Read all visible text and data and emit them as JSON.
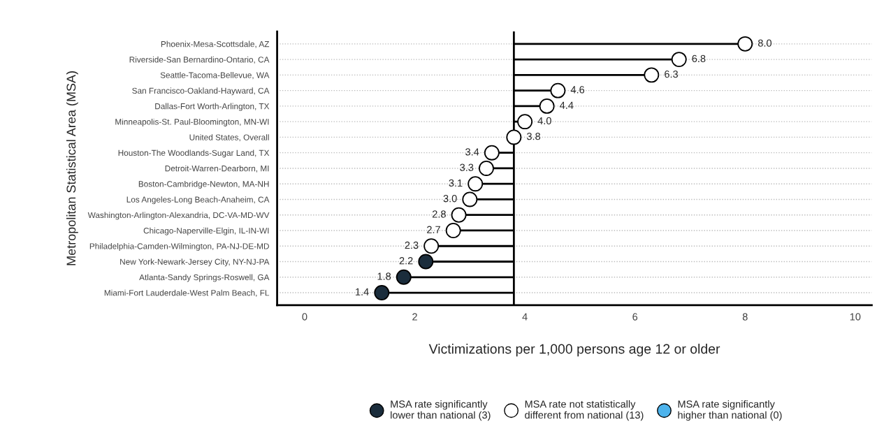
{
  "chart_data": {
    "type": "lollipop",
    "orientation": "horizontal",
    "ylabel": "Metropolitan Statistical Area (MSA)",
    "xlabel": "Victimizations per 1,000 persons age 12 or older",
    "categories": [
      "Phoenix-Mesa-Scottsdale, AZ",
      "Riverside-San Bernardino-Ontario, CA",
      "Seattle-Tacoma-Bellevue, WA",
      "San Francisco-Oakland-Hayward, CA",
      "Dallas-Fort Worth-Arlington, TX",
      "Minneapolis-St. Paul-Bloomington, MN-WI",
      "United States, Overall",
      "Houston-The Woodlands-Sugar Land, TX",
      "Detroit-Warren-Dearborn, MI",
      "Boston-Cambridge-Newton, MA-NH",
      "Los Angeles-Long Beach-Anaheim, CA",
      "Washington-Arlington-Alexandria, DC-VA-MD-WV",
      "Chicago-Naperville-Elgin, IL-IN-WI",
      "Philadelphia-Camden-Wilmington, PA-NJ-DE-MD",
      "New York-Newark-Jersey City, NY-NJ-PA",
      "Atlanta-Sandy Springs-Roswell, GA",
      "Miami-Fort Lauderdale-West Palm Beach, FL"
    ],
    "series": [
      {
        "name": "MSA rate significantly\nlower than national (3)",
        "color": "#1b2d3c",
        "values": [
          null,
          null,
          null,
          null,
          null,
          null,
          null,
          null,
          null,
          null,
          null,
          null,
          null,
          null,
          2.2,
          1.8,
          1.4
        ],
        "value_labels": [
          null,
          null,
          null,
          null,
          null,
          null,
          null,
          null,
          null,
          null,
          null,
          null,
          null,
          null,
          "2.2",
          "1.8",
          "1.4"
        ]
      },
      {
        "name": "MSA rate not statistically\ndifferent from national (13)",
        "color": "#ffffff",
        "values": [
          8.0,
          6.8,
          6.3,
          4.6,
          4.4,
          4.0,
          3.8,
          3.4,
          3.3,
          3.1,
          3.0,
          2.8,
          2.7,
          2.3,
          null,
          null,
          null
        ],
        "value_labels": [
          "8.0",
          "6.8",
          "6.3",
          "4.6",
          "4.4",
          "4.0",
          "3.8",
          "3.4",
          "3.3",
          "3.1",
          "3.0",
          "2.8",
          "2.7",
          "2.3",
          null,
          null,
          null
        ]
      },
      {
        "name": "MSA rate significantly\nhigher than national (0)",
        "color": "#4db3ec",
        "values": [
          null,
          null,
          null,
          null,
          null,
          null,
          null,
          null,
          null,
          null,
          null,
          null,
          null,
          null,
          null,
          null,
          null
        ]
      }
    ],
    "ref_lines": [
      {
        "axis": "x",
        "value": 3.8,
        "color": "#000000",
        "line_style": "solid"
      }
    ],
    "xlim": [
      -0.5,
      10.3
    ],
    "xticks": [
      0,
      2,
      4,
      6,
      8,
      10
    ],
    "grid": "y",
    "marker": "circle",
    "legend": "bottom"
  }
}
